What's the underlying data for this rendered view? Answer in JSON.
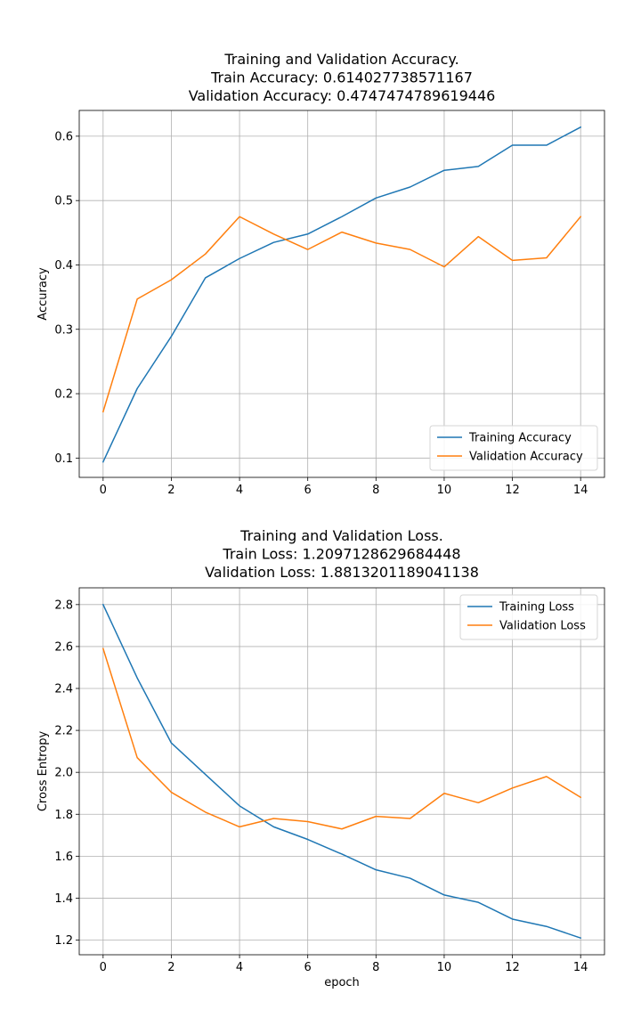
{
  "colors": {
    "train": "#1f77b4",
    "validation": "#ff7f0e",
    "grid": "#b0b0b0",
    "axis": "#000000"
  },
  "chart_data": [
    {
      "type": "line",
      "title": [
        "Training and Validation Accuracy.",
        "Train Accuracy: 0.614027738571167",
        "Validation Accuracy: 0.4747474789619446"
      ],
      "xlabel": "",
      "ylabel": "Accuracy",
      "xlim": [
        -0.7,
        14.7
      ],
      "ylim": [
        0.07,
        0.64
      ],
      "xticks": [
        0,
        2,
        4,
        6,
        8,
        10,
        12,
        14
      ],
      "xtick_labels": [
        "0",
        "2",
        "4",
        "6",
        "8",
        "10",
        "12",
        "14"
      ],
      "yticks": [
        0.1,
        0.2,
        0.3,
        0.4,
        0.5,
        0.6
      ],
      "ytick_labels": [
        "0.1",
        "0.2",
        "0.3",
        "0.4",
        "0.5",
        "0.6"
      ],
      "grid": true,
      "legend_position": "lower-right",
      "x": [
        0,
        1,
        2,
        3,
        4,
        5,
        6,
        7,
        8,
        9,
        10,
        11,
        12,
        13,
        14
      ],
      "series": [
        {
          "name": "Training Accuracy",
          "color": "#1f77b4",
          "values": [
            0.094,
            0.208,
            0.289,
            0.38,
            0.41,
            0.435,
            0.448,
            0.475,
            0.504,
            0.521,
            0.547,
            0.553,
            0.586,
            0.586,
            0.614
          ]
        },
        {
          "name": "Validation Accuracy",
          "color": "#ff7f0e",
          "values": [
            0.172,
            0.347,
            0.377,
            0.417,
            0.475,
            0.448,
            0.424,
            0.451,
            0.434,
            0.424,
            0.397,
            0.444,
            0.407,
            0.411,
            0.475
          ]
        }
      ]
    },
    {
      "type": "line",
      "title": [
        "Training and Validation Loss.",
        "Train Loss: 1.2097128629684448",
        "Validation Loss: 1.8813201189041138"
      ],
      "xlabel": "epoch",
      "ylabel": "Cross Entropy",
      "xlim": [
        -0.7,
        14.7
      ],
      "ylim": [
        1.13,
        2.88
      ],
      "xticks": [
        0,
        2,
        4,
        6,
        8,
        10,
        12,
        14
      ],
      "xtick_labels": [
        "0",
        "2",
        "4",
        "6",
        "8",
        "10",
        "12",
        "14"
      ],
      "yticks": [
        1.2,
        1.4,
        1.6,
        1.8,
        2.0,
        2.2,
        2.4,
        2.6,
        2.8
      ],
      "ytick_labels": [
        "1.2",
        "1.4",
        "1.6",
        "1.8",
        "2.0",
        "2.2",
        "2.4",
        "2.6",
        "2.8"
      ],
      "grid": true,
      "legend_position": "upper-right",
      "x": [
        0,
        1,
        2,
        3,
        4,
        5,
        6,
        7,
        8,
        9,
        10,
        11,
        12,
        13,
        14
      ],
      "series": [
        {
          "name": "Training Loss",
          "color": "#1f77b4",
          "values": [
            2.8,
            2.45,
            2.14,
            1.99,
            1.84,
            1.74,
            1.68,
            1.61,
            1.535,
            1.495,
            1.415,
            1.38,
            1.3,
            1.265,
            1.21
          ]
        },
        {
          "name": "Validation Loss",
          "color": "#ff7f0e",
          "values": [
            2.59,
            2.07,
            1.905,
            1.81,
            1.74,
            1.78,
            1.765,
            1.73,
            1.79,
            1.78,
            1.9,
            1.855,
            1.925,
            1.98,
            1.881
          ]
        }
      ]
    }
  ]
}
